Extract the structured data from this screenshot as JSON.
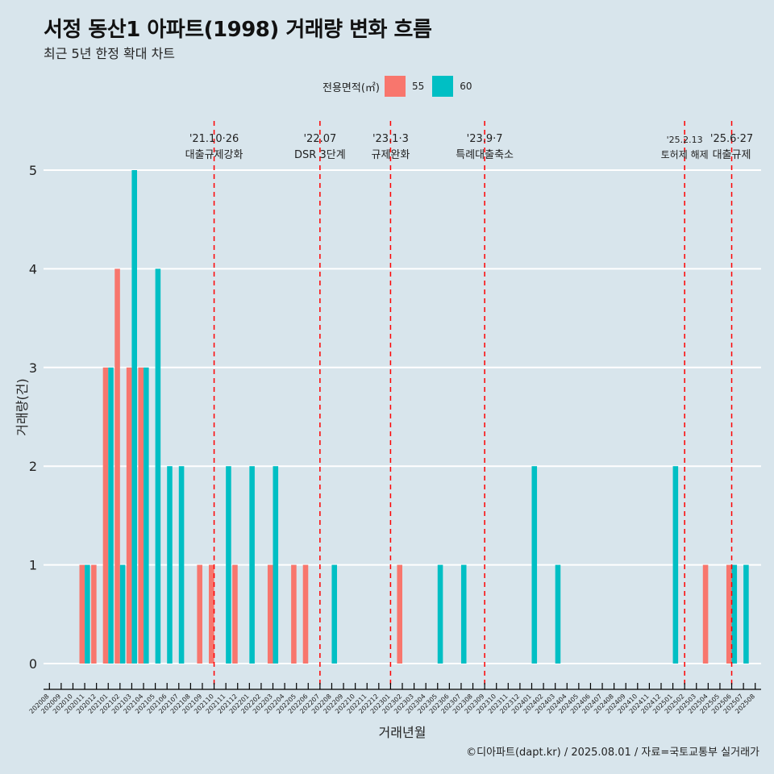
{
  "title": "서정 동산1 아파트(1998) 거래량 변화 흐름",
  "subtitle": "최근 5년 한정 확대 차트",
  "caption": "©디아파트(dapt.kr) / 2025.08.01 / 자료=국토교통부 실거래가",
  "legend": {
    "title": "전용면적(㎡)",
    "items": [
      {
        "label": "55",
        "color": "#f8766d"
      },
      {
        "label": "60",
        "color": "#00bfc4"
      }
    ]
  },
  "chart_data": {
    "type": "bar",
    "xlabel": "거래년월",
    "ylabel": "거래량(건)",
    "ylim": [
      0,
      5
    ],
    "yticks": [
      0,
      1,
      2,
      3,
      4,
      5
    ],
    "grid": true,
    "legend_position": "top",
    "categories": [
      "202008",
      "202009",
      "202010",
      "202011",
      "202012",
      "202101",
      "202102",
      "202103",
      "202104",
      "202105",
      "202106",
      "202107",
      "202108",
      "202109",
      "202110",
      "202111",
      "202112",
      "202201",
      "202202",
      "202203",
      "202204",
      "202205",
      "202206",
      "202207",
      "202208",
      "202209",
      "202210",
      "202211",
      "202212",
      "202301",
      "202302",
      "202303",
      "202304",
      "202305",
      "202306",
      "202307",
      "202308",
      "202309",
      "202310",
      "202311",
      "202312",
      "202401",
      "202402",
      "202403",
      "202404",
      "202405",
      "202406",
      "202407",
      "202408",
      "202409",
      "202410",
      "202411",
      "202412",
      "202501",
      "202502",
      "202503",
      "202504",
      "202505",
      "202506",
      "202507",
      "202508"
    ],
    "series": [
      {
        "name": "55",
        "color": "#f8766d",
        "values": [
          0,
          0,
          0,
          1,
          1,
          3,
          4,
          3,
          3,
          0,
          0,
          0,
          0,
          1,
          1,
          0,
          1,
          0,
          0,
          1,
          0,
          1,
          1,
          0,
          0,
          0,
          0,
          0,
          0,
          0,
          1,
          0,
          0,
          0,
          0,
          0,
          0,
          0,
          0,
          0,
          0,
          0,
          0,
          0,
          0,
          0,
          0,
          0,
          0,
          0,
          0,
          0,
          0,
          0,
          0,
          0,
          1,
          0,
          1,
          0,
          0
        ]
      },
      {
        "name": "60",
        "color": "#00bfc4",
        "values": [
          0,
          0,
          0,
          1,
          0,
          3,
          1,
          5,
          3,
          4,
          2,
          2,
          0,
          0,
          0,
          2,
          0,
          2,
          0,
          2,
          0,
          0,
          0,
          0,
          1,
          0,
          0,
          0,
          0,
          0,
          0,
          0,
          0,
          1,
          0,
          1,
          0,
          0,
          0,
          0,
          0,
          2,
          0,
          1,
          0,
          0,
          0,
          0,
          0,
          0,
          0,
          0,
          0,
          2,
          0,
          0,
          0,
          0,
          1,
          1,
          0
        ]
      }
    ],
    "annotations": [
      {
        "date": "'21.10·26",
        "label": "대출규제강화",
        "at": "202110"
      },
      {
        "date": "'22.07",
        "label": "DSR 3단계",
        "at": "202207"
      },
      {
        "date": "'23.1·3",
        "label": "규제완화",
        "at": "202301"
      },
      {
        "date": "'23.9·7",
        "label": "특례대출축소",
        "at": "202309"
      },
      {
        "date": "'25.2.13",
        "label": "토허제 해제",
        "at": "202502"
      },
      {
        "date": "'25.6·27",
        "label": "대출규제",
        "at": "202506"
      }
    ]
  }
}
